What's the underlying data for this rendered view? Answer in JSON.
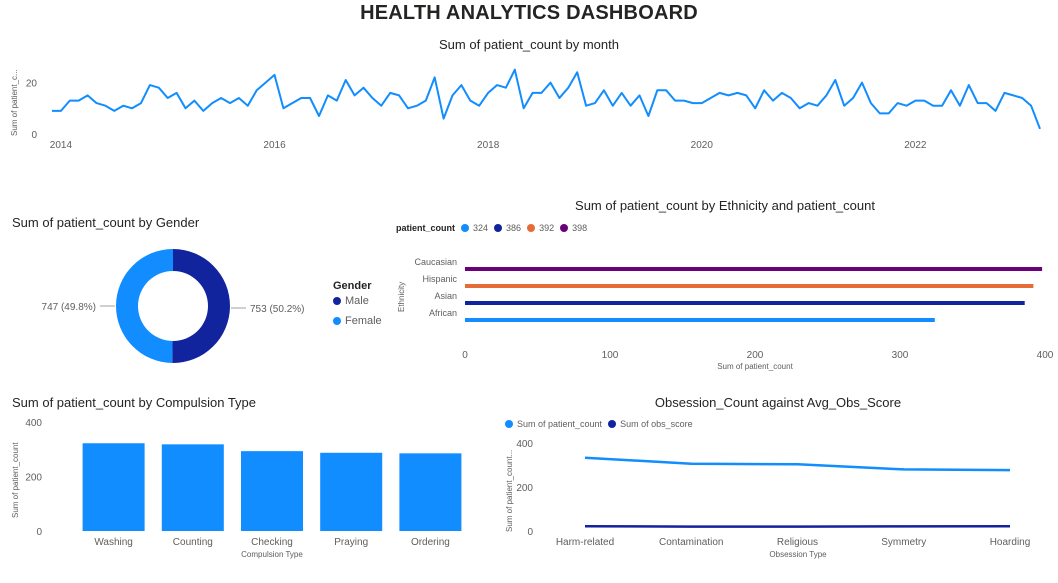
{
  "dashboard": {
    "title": "HEALTH ANALYTICS DASHBOARD"
  },
  "chart_data": [
    {
      "id": "monthly",
      "type": "line",
      "title": "Sum of patient_count by month",
      "xlabel": "",
      "ylabel": "Sum of patient_c...",
      "x_ticks": [
        "2014",
        "2016",
        "2018",
        "2020",
        "2022"
      ],
      "y_ticks": [
        0,
        20
      ],
      "ylim": [
        0,
        28
      ],
      "color": "#118dff",
      "series": [
        {
          "values": [
            9,
            9,
            13,
            13,
            15,
            12,
            11,
            9,
            11,
            10,
            12,
            19,
            18,
            14,
            16,
            10,
            13,
            9,
            12,
            14,
            12,
            14,
            11,
            17,
            20,
            23,
            10,
            12,
            14,
            14,
            7,
            15,
            13,
            21,
            15,
            18,
            14,
            11,
            16,
            15,
            10,
            11,
            13,
            22,
            6,
            15,
            19,
            13,
            11,
            16,
            19,
            18,
            25,
            10,
            16,
            16,
            20,
            14,
            18,
            24,
            11,
            12,
            17,
            11,
            16,
            11,
            15,
            7,
            17,
            17,
            13,
            13,
            12,
            12,
            14,
            16,
            15,
            16,
            15,
            10,
            17,
            13,
            16,
            14,
            10,
            12,
            11,
            15,
            21,
            11,
            14,
            20,
            12,
            8,
            8,
            12,
            11,
            13,
            13,
            11,
            11,
            17,
            11,
            19,
            12,
            12,
            9,
            16,
            15,
            14,
            11,
            2
          ]
        }
      ]
    },
    {
      "id": "gender",
      "type": "pie",
      "title": "Sum of patient_count by Gender",
      "legend_title": "Gender",
      "slices": [
        {
          "name": "Male",
          "value": 753,
          "label": "753 (50.2%)",
          "color": "#12239e"
        },
        {
          "name": "Female",
          "value": 747,
          "label": "747 (49.8%)",
          "color": "#118dff"
        }
      ]
    },
    {
      "id": "ethnicity",
      "type": "bar",
      "orientation": "horizontal",
      "title": "Sum of patient_count by Ethnicity and patient_count",
      "xlabel": "Sum of patient_count",
      "ylabel": "Ethnicity",
      "legend_title": "patient_count",
      "legend": [
        {
          "name": "324",
          "color": "#118dff"
        },
        {
          "name": "386",
          "color": "#12239e"
        },
        {
          "name": "392",
          "color": "#e66c37"
        },
        {
          "name": "398",
          "color": "#6b007b"
        }
      ],
      "categories": [
        "Caucasian",
        "Hispanic",
        "Asian",
        "African"
      ],
      "values": [
        398,
        392,
        386,
        324
      ],
      "colors": [
        "#6b007b",
        "#e66c37",
        "#12239e",
        "#118dff"
      ],
      "x_ticks": [
        0,
        100,
        200,
        300,
        400
      ],
      "xlim": [
        0,
        400
      ]
    },
    {
      "id": "compulsion",
      "type": "bar",
      "title": "Sum of patient_count by Compulsion Type",
      "xlabel": "Compulsion Type",
      "ylabel": "Sum of patient_count",
      "categories": [
        "Washing",
        "Counting",
        "Checking",
        "Praying",
        "Ordering"
      ],
      "values": [
        322,
        318,
        293,
        287,
        285
      ],
      "y_ticks": [
        0,
        200,
        400
      ],
      "ylim": [
        0,
        400
      ],
      "color": "#118dff"
    },
    {
      "id": "obsession",
      "type": "line",
      "title": "Obsession_Count against Avg_Obs_Score",
      "xlabel": "Obsession Type",
      "ylabel": "Sum of patient_count...",
      "categories": [
        "Harm-related",
        "Contamination",
        "Religious",
        "Symmetry",
        "Hoarding"
      ],
      "y_ticks": [
        0,
        200,
        400
      ],
      "ylim": [
        0,
        400
      ],
      "series": [
        {
          "name": "Sum of patient_count",
          "values": [
            333,
            306,
            303,
            280,
            277
          ],
          "color": "#118dff"
        },
        {
          "name": "Sum of obs_score",
          "values": [
            22,
            20,
            20,
            21,
            22
          ],
          "color": "#12239e"
        }
      ]
    }
  ]
}
